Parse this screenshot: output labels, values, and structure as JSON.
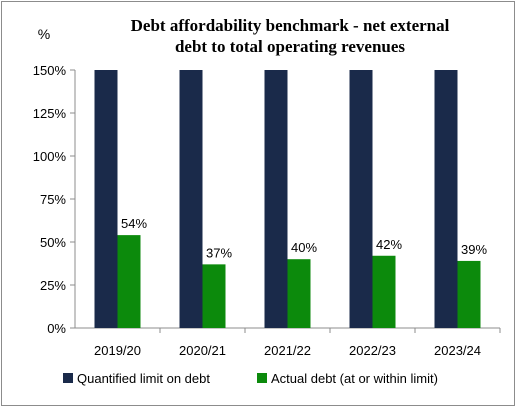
{
  "chart_data": {
    "type": "bar",
    "title_lines": [
      "Debt affordability benchmark - net external",
      "debt to total operating revenues"
    ],
    "unit_label": "%",
    "categories": [
      "2019/20",
      "2020/21",
      "2021/22",
      "2022/23",
      "2023/24"
    ],
    "series": [
      {
        "name": "Quantified limit on debt",
        "values": [
          150,
          150,
          150,
          150,
          150
        ],
        "color": "#1a2a4a"
      },
      {
        "name": "Actual debt (at or within limit)",
        "values": [
          54,
          37,
          40,
          42,
          39
        ],
        "labels": [
          "54%",
          "37%",
          "40%",
          "42%",
          "39%"
        ],
        "color": "#0c8a0c"
      }
    ],
    "ylim": [
      0,
      150
    ],
    "yticks": [
      0,
      25,
      50,
      75,
      100,
      125,
      150
    ],
    "ytick_labels": [
      "0%",
      "25%",
      "50%",
      "75%",
      "100%",
      "125%",
      "150%"
    ],
    "grid": false,
    "legend_position": "bottom"
  }
}
